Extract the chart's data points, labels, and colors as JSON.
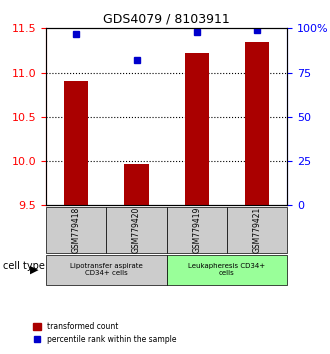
{
  "title": "GDS4079 / 8103911",
  "samples": [
    "GSM779418",
    "GSM779420",
    "GSM779419",
    "GSM779421"
  ],
  "bar_values": [
    10.9,
    9.97,
    11.22,
    11.35
  ],
  "percentile_values": [
    97,
    82,
    98,
    99
  ],
  "ylim_left": [
    9.5,
    11.5
  ],
  "ylim_right": [
    0,
    100
  ],
  "yticks_left": [
    9.5,
    10.0,
    10.5,
    11.0,
    11.5
  ],
  "yticks_right": [
    0,
    25,
    50,
    75,
    100
  ],
  "ytick_labels_right": [
    "0",
    "25",
    "50",
    "75",
    "100%"
  ],
  "bar_color": "#aa0000",
  "dot_color": "#0000cc",
  "bar_width": 0.4,
  "group_labels": [
    "Lipotransfer aspirate\nCD34+ cells",
    "Leukapheresis CD34+\ncells"
  ],
  "group_colors": [
    "#cccccc",
    "#99ff99"
  ],
  "cell_type_label": "cell type",
  "legend_items": [
    "transformed count",
    "percentile rank within the sample"
  ],
  "legend_colors": [
    "#aa0000",
    "#0000cc"
  ],
  "ybase": 9.5
}
